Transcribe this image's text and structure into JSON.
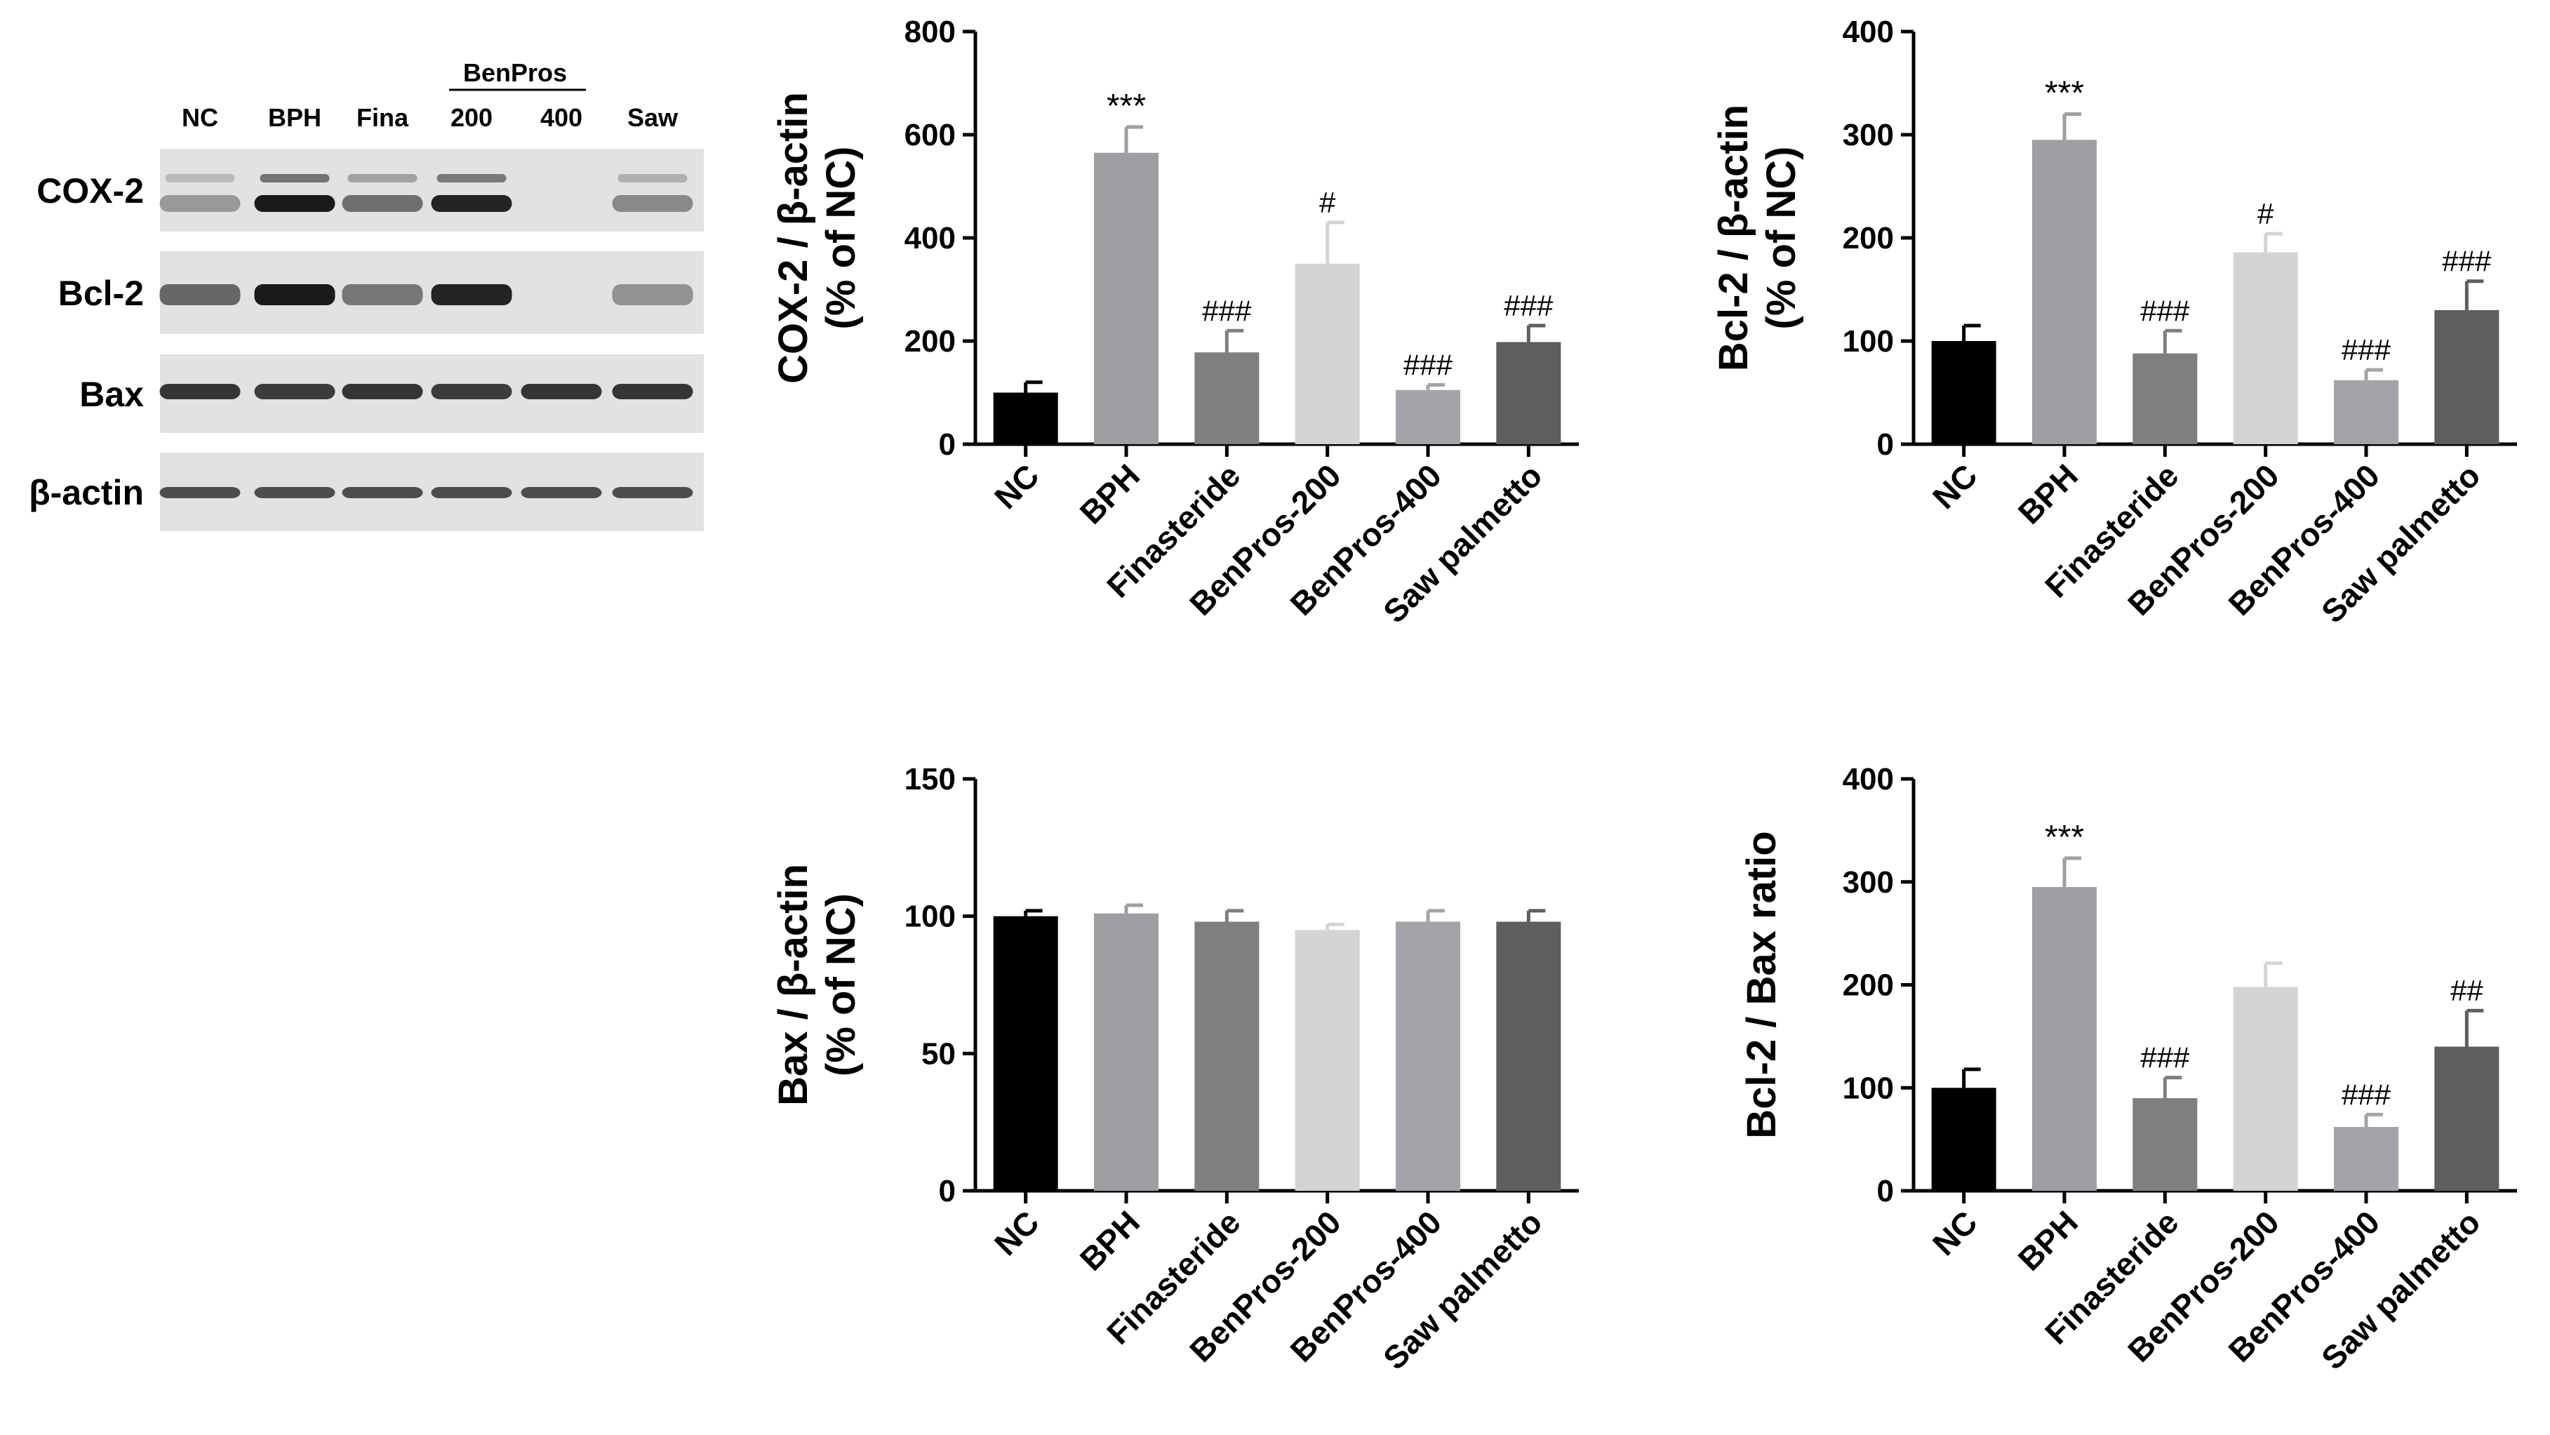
{
  "blot": {
    "lane_labels": [
      "NC",
      "BPH",
      "Fina",
      "200",
      "400",
      "Saw"
    ],
    "group_label": "BenPros",
    "rows": [
      {
        "label": "COX-2",
        "bands": [
          0.25,
          1.0,
          0.5,
          0.95,
          0.02,
          0.35
        ],
        "color": "#6b6b6b"
      },
      {
        "label": "Bcl-2",
        "bands": [
          0.55,
          1.0,
          0.45,
          0.95,
          0.02,
          0.3
        ],
        "color": "#6b6b6b"
      },
      {
        "label": "Bax",
        "bands": [
          0.85,
          0.8,
          0.85,
          0.8,
          0.85,
          0.85
        ],
        "color": "#6b6b6b"
      },
      {
        "label": "β-actin",
        "bands": [
          0.7,
          0.7,
          0.7,
          0.7,
          0.7,
          0.7
        ],
        "color": "#6b6b6b"
      }
    ]
  },
  "chart_data": [
    {
      "type": "bar",
      "categories": [
        "NC",
        "BPH",
        "Finasteride",
        "BenPros-200",
        "BenPros-400",
        "Saw palmetto"
      ],
      "values": [
        100,
        565,
        178,
        350,
        105,
        198
      ],
      "errors": [
        20,
        50,
        42,
        80,
        10,
        32
      ],
      "annotations": [
        "",
        "***",
        "###",
        "#",
        "###",
        "###"
      ],
      "ylabel": "COX-2 / β-actin",
      "ylabel2": "(% of NC)",
      "ylim": [
        0,
        800
      ],
      "ticks": [
        0,
        200,
        400,
        600,
        800
      ]
    },
    {
      "type": "bar",
      "categories": [
        "NC",
        "BPH",
        "Finasteride",
        "BenPros-200",
        "BenPros-400",
        "Saw palmetto"
      ],
      "values": [
        100,
        295,
        88,
        186,
        62,
        130
      ],
      "errors": [
        15,
        25,
        22,
        18,
        10,
        28
      ],
      "annotations": [
        "",
        "***",
        "###",
        "#",
        "###",
        "###"
      ],
      "ylabel": "Bcl-2 / β-actin",
      "ylabel2": "(% of NC)",
      "ylim": [
        0,
        400
      ],
      "ticks": [
        0,
        100,
        200,
        300,
        400
      ]
    },
    {
      "type": "bar",
      "categories": [
        "NC",
        "BPH",
        "Finasteride",
        "BenPros-200",
        "BenPros-400",
        "Saw palmetto"
      ],
      "values": [
        100,
        101,
        98,
        95,
        98,
        98
      ],
      "errors": [
        2,
        3,
        4,
        2,
        4,
        4
      ],
      "annotations": [
        "",
        "",
        "",
        "",
        "",
        ""
      ],
      "ylabel": "Bax / β-actin",
      "ylabel2": "(% of NC)",
      "ylim": [
        0,
        150
      ],
      "ticks": [
        0,
        50,
        100,
        150
      ]
    },
    {
      "type": "bar",
      "categories": [
        "NC",
        "BPH",
        "Finasteride",
        "BenPros-200",
        "BenPros-400",
        "Saw palmetto"
      ],
      "values": [
        100,
        295,
        90,
        198,
        62,
        140
      ],
      "errors": [
        18,
        28,
        20,
        23,
        12,
        35
      ],
      "annotations": [
        "",
        "***",
        "###",
        "",
        "###",
        "##"
      ],
      "ylabel": "Bcl-2 / Bax ratio",
      "ylabel2": "",
      "ylim": [
        0,
        400
      ],
      "ticks": [
        0,
        100,
        200,
        300,
        400
      ]
    }
  ],
  "colors": {
    "bars": [
      "#000000",
      "#9e9ea3",
      "#7f7f7f",
      "#d4d4d4",
      "#a3a3a8",
      "#5e5e5e"
    ]
  }
}
